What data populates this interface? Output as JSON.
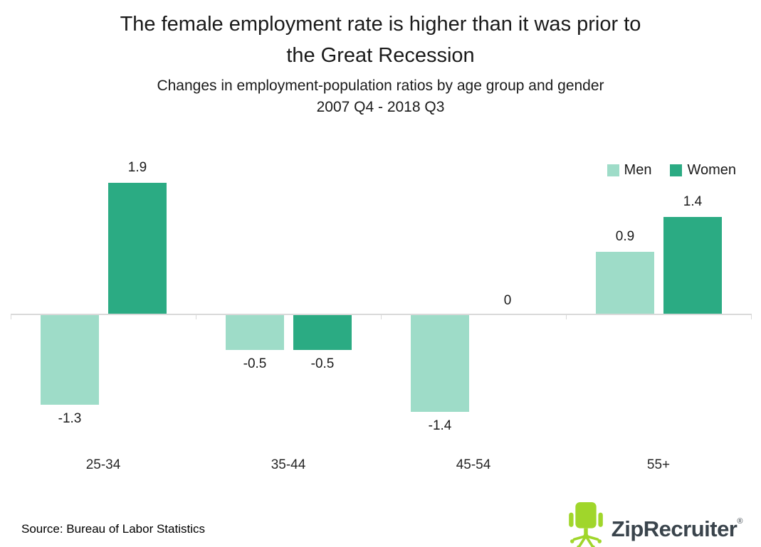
{
  "header": {
    "title_lines": [
      "The female employment rate is higher than it was prior to",
      "the Great Recession"
    ],
    "subtitle_lines": [
      "Changes in employment-population ratios by age group and gender",
      "2007 Q4 - 2018 Q3"
    ]
  },
  "chart_data": {
    "type": "bar",
    "title": "The female employment rate is higher than it was prior to the Great Recession",
    "subtitle": "Changes in employment-population ratios by age group and gender 2007 Q4 - 2018 Q3",
    "categories": [
      "25-34",
      "35-44",
      "45-54",
      "55+"
    ],
    "series": [
      {
        "name": "Men",
        "color": "#9EDCC8",
        "values": [
          -1.3,
          -0.5,
          -1.4,
          0.9
        ],
        "labels": [
          "-1.3",
          "-0.5",
          "-1.4",
          "0.9"
        ]
      },
      {
        "name": "Women",
        "color": "#2BAB83",
        "values": [
          1.9,
          -0.5,
          0,
          1.4
        ],
        "labels": [
          "1.9",
          "-0.5",
          "0",
          "1.4"
        ]
      }
    ],
    "xlabel": "",
    "ylabel": "",
    "ylim": [
      -1.6,
      2.1
    ],
    "grid": false,
    "legend_position": "top-right",
    "axis_color": "#D9D9D9"
  },
  "footer": {
    "source": "Source: Bureau of Labor Statistics",
    "logo_text": "ZipRecruiter",
    "logo_registered": "®",
    "logo_green": "#A0D62B",
    "logo_text_color": "#3A444C"
  }
}
